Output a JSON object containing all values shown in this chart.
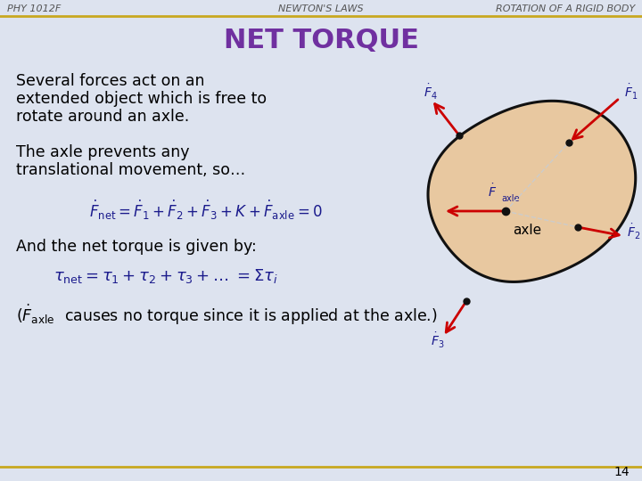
{
  "bg_color": "#dde3ef",
  "header_line_color": "#c8a820",
  "title": "NET TORQUE",
  "title_color": "#7030a0",
  "title_fontsize": 22,
  "header_left": "PHY 1012F",
  "header_center": "NEWTON'S LAWS",
  "header_right": "ROTATION OF A RIGID BODY",
  "header_fontsize": 8,
  "header_color": "#555555",
  "body_color": "#000000",
  "body_fontsize": 12.5,
  "formula_color": "#1a1a8c",
  "footer_number": "14",
  "arrow_color": "#cc0000",
  "blob_fill": "#e8c8a0",
  "blob_stroke": "#111111",
  "label_color": "#1a1a8c",
  "axle_label_color": "#000000",
  "dashed_line_color": "#cccccc"
}
